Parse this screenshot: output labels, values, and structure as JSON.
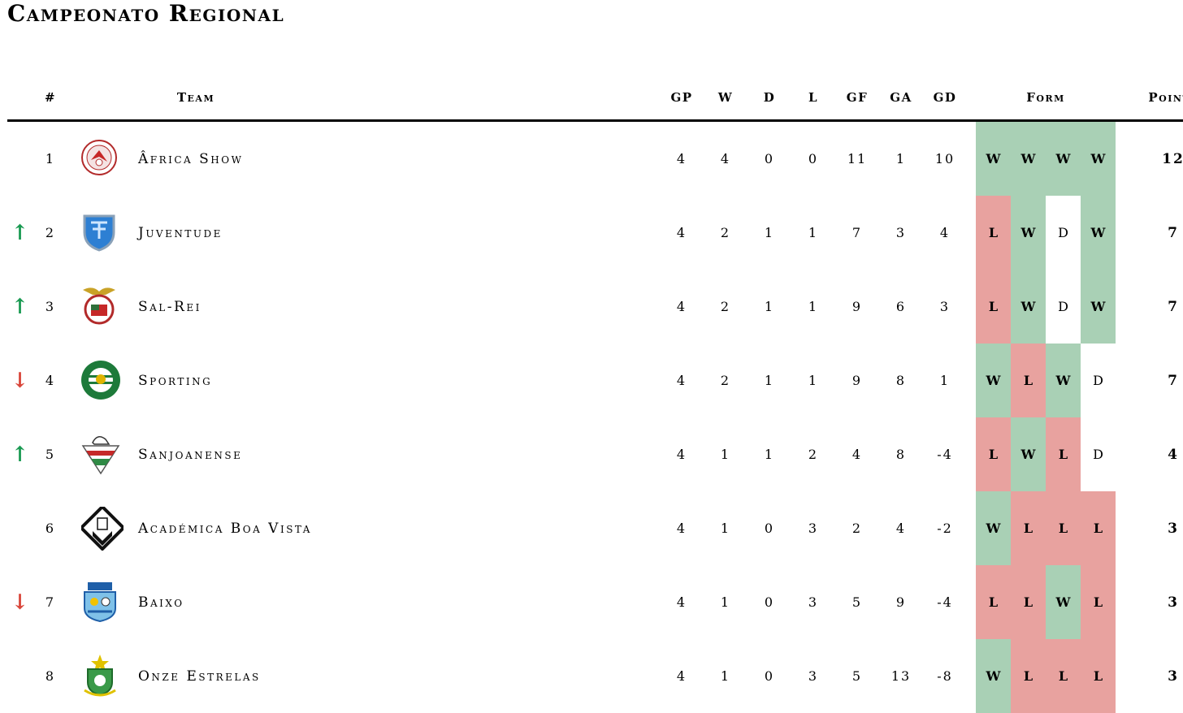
{
  "title": "Campeonato Regional",
  "headers": {
    "pos": "#",
    "team": "Team",
    "gp": "GP",
    "w": "W",
    "d": "D",
    "l": "L",
    "gf": "GF",
    "ga": "GA",
    "gd": "GD",
    "form": "Form",
    "points": "Points"
  },
  "colors": {
    "win": "#a9d0b5",
    "loss": "#e8a29f",
    "draw": "#ffffff",
    "up": "#1a9a52",
    "down": "#d9463a"
  },
  "rows": [
    {
      "movement": "",
      "movement_dir": "none",
      "pos": "1",
      "logo": "africa-show-crest",
      "team": "Âfrica Show",
      "gp": "4",
      "w": "4",
      "d": "0",
      "l": "0",
      "gf": "11",
      "ga": "1",
      "gd": "10",
      "form": [
        "W",
        "W",
        "W",
        "W"
      ],
      "points": "12"
    },
    {
      "movement": "↑",
      "movement_dir": "up",
      "pos": "2",
      "logo": "juventude-crest",
      "team": "Juventude",
      "gp": "4",
      "w": "2",
      "d": "1",
      "l": "1",
      "gf": "7",
      "ga": "3",
      "gd": "4",
      "form": [
        "L",
        "W",
        "D",
        "W"
      ],
      "points": "7"
    },
    {
      "movement": "↑",
      "movement_dir": "up",
      "pos": "3",
      "logo": "sal-rei-crest",
      "team": "Sal-Rei",
      "gp": "4",
      "w": "2",
      "d": "1",
      "l": "1",
      "gf": "9",
      "ga": "6",
      "gd": "3",
      "form": [
        "L",
        "W",
        "D",
        "W"
      ],
      "points": "7"
    },
    {
      "movement": "↓",
      "movement_dir": "down",
      "pos": "4",
      "logo": "sporting-crest",
      "team": "Sporting",
      "gp": "4",
      "w": "2",
      "d": "1",
      "l": "1",
      "gf": "9",
      "ga": "8",
      "gd": "1",
      "form": [
        "W",
        "L",
        "W",
        "D"
      ],
      "points": "7"
    },
    {
      "movement": "↑",
      "movement_dir": "up",
      "pos": "5",
      "logo": "sanjoanense-crest",
      "team": "Sanjoanense",
      "gp": "4",
      "w": "1",
      "d": "1",
      "l": "2",
      "gf": "4",
      "ga": "8",
      "gd": "-4",
      "form": [
        "L",
        "W",
        "L",
        "D"
      ],
      "points": "4"
    },
    {
      "movement": "",
      "movement_dir": "none",
      "pos": "6",
      "logo": "academica-boa-vista-crest",
      "team": "Académica Boa Vista",
      "gp": "4",
      "w": "1",
      "d": "0",
      "l": "3",
      "gf": "2",
      "ga": "4",
      "gd": "-2",
      "form": [
        "W",
        "L",
        "L",
        "L"
      ],
      "points": "3"
    },
    {
      "movement": "↓",
      "movement_dir": "down",
      "pos": "7",
      "logo": "baixo-crest",
      "team": "Baixo",
      "gp": "4",
      "w": "1",
      "d": "0",
      "l": "3",
      "gf": "5",
      "ga": "9",
      "gd": "-4",
      "form": [
        "L",
        "L",
        "W",
        "L"
      ],
      "points": "3"
    },
    {
      "movement": "",
      "movement_dir": "none",
      "pos": "8",
      "logo": "onze-estrelas-crest",
      "team": "Onze Estrelas",
      "gp": "4",
      "w": "1",
      "d": "0",
      "l": "3",
      "gf": "5",
      "ga": "13",
      "gd": "-8",
      "form": [
        "W",
        "L",
        "L",
        "L"
      ],
      "points": "3"
    }
  ]
}
